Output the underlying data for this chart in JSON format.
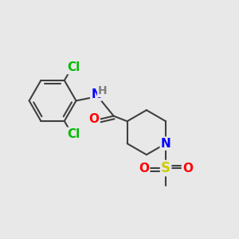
{
  "background_color": "#e8e8e8",
  "atom_colors": {
    "C": "#000000",
    "N": "#0000ff",
    "O": "#ff0000",
    "S": "#cccc00",
    "Cl": "#00bb00",
    "H": "#808080"
  },
  "bond_color": "#404040",
  "bond_width": 1.5,
  "font_size_atoms": 11,
  "font_size_small": 10,
  "figsize": [
    3.0,
    3.0
  ],
  "dpi": 100
}
